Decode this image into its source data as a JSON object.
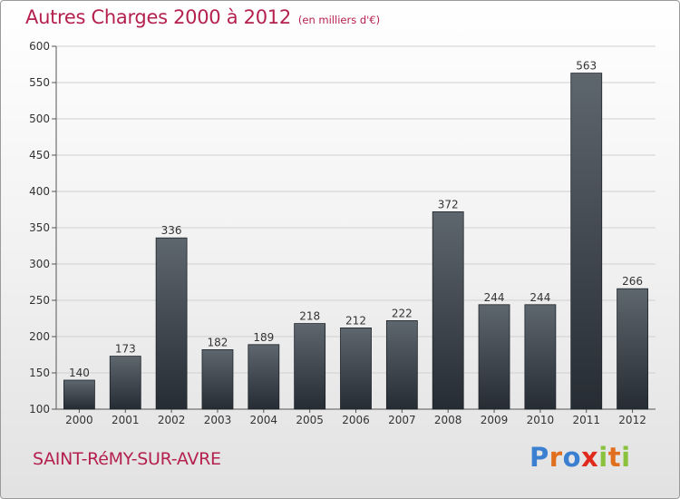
{
  "title": "Autres Charges 2000 à 2012",
  "subtitle": "(en milliers d'€)",
  "commune": "SAINT-RéMY-SUR-AVRE",
  "logo": {
    "text": "Proxiti",
    "letter_colors": [
      "#3a7fd0",
      "#e0701e",
      "#3a7fd0",
      "#e02a1e",
      "#8ac23e",
      "#e0701e",
      "#8ac23e"
    ]
  },
  "colors": {
    "title": "#b5214f",
    "bar_top": "#5e666e",
    "bar_bottom": "#262c33",
    "grid": "#d0d0d0",
    "axis": "#555555"
  },
  "chart_data": {
    "type": "bar",
    "title": "Autres Charges 2000 à 2012",
    "subtitle": "(en milliers d'€)",
    "categories": [
      "2000",
      "2001",
      "2002",
      "2003",
      "2004",
      "2005",
      "2006",
      "2007",
      "2008",
      "2009",
      "2010",
      "2011",
      "2012"
    ],
    "values": [
      140,
      173,
      336,
      182,
      189,
      218,
      212,
      222,
      372,
      244,
      244,
      563,
      266
    ],
    "ylim": [
      100,
      600
    ],
    "yticks": [
      100,
      150,
      200,
      250,
      300,
      350,
      400,
      450,
      500,
      550,
      600
    ],
    "grid": true,
    "legend": "none"
  }
}
